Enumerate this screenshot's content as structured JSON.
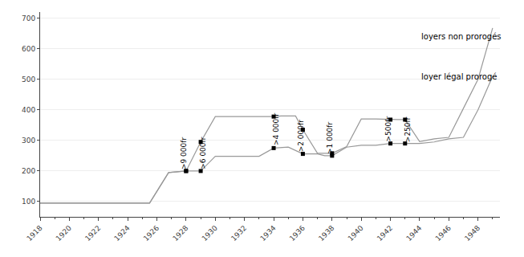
{
  "chart_data": {
    "type": "line",
    "xlim": [
      1918,
      1949.5
    ],
    "ylim": [
      50,
      720
    ],
    "xticks": [
      1918,
      1920,
      1922,
      1924,
      1926,
      1928,
      1930,
      1932,
      1934,
      1936,
      1938,
      1940,
      1942,
      1944,
      1946,
      1948
    ],
    "yticks": [
      100,
      200,
      300,
      400,
      500,
      600,
      700
    ],
    "grid": "y",
    "series": [
      {
        "type": "line",
        "color": "#999999",
        "x": [
          1918,
          1919,
          1920,
          1921,
          1922,
          1923,
          1924,
          1925,
          1925.5,
          1926.8,
          1928,
          1929,
          1930,
          1931,
          1932,
          1933,
          1934,
          1934.5,
          1935.5,
          1936,
          1937,
          1937.5,
          1938,
          1939,
          1940,
          1941,
          1942,
          1942.5,
          1943,
          1944,
          1945,
          1946,
          1947,
          1948,
          1949
        ],
        "values": [
          95,
          95,
          95,
          95,
          95,
          95,
          95,
          95,
          95,
          195,
          200,
          295,
          378,
          378,
          378,
          378,
          378,
          380,
          380,
          335,
          258,
          258,
          258,
          280,
          370,
          370,
          368,
          368,
          368,
          296,
          305,
          310,
          405,
          500,
          668
        ]
      },
      {
        "type": "line",
        "color": "#999999",
        "x": [
          1918,
          1919,
          1920,
          1921,
          1922,
          1923,
          1924,
          1925,
          1925.5,
          1926.8,
          1928,
          1929,
          1930,
          1931,
          1932,
          1933,
          1934,
          1935,
          1936,
          1937,
          1937.5,
          1938,
          1939,
          1940,
          1941,
          1942,
          1943,
          1944,
          1945,
          1946,
          1947,
          1948,
          1949
        ],
        "values": [
          95,
          95,
          95,
          95,
          95,
          95,
          95,
          95,
          95,
          195,
          200,
          200,
          248,
          248,
          248,
          248,
          275,
          278,
          256,
          256,
          250,
          250,
          278,
          284,
          284,
          290,
          290,
          290,
          295,
          305,
          310,
          400,
          510
        ]
      },
      {
        "type": "scatter",
        "marker": "square",
        "color": "#000000",
        "x": [
          1928,
          1929,
          1934,
          1936,
          1938,
          1942,
          1943
        ],
        "values": [
          200,
          295,
          378,
          335,
          258,
          368,
          368
        ]
      },
      {
        "type": "scatter",
        "marker": "square",
        "color": "#000000",
        "x": [
          1928,
          1929,
          1934,
          1936,
          1938,
          1942,
          1943
        ],
        "values": [
          200,
          200,
          275,
          256,
          250,
          290,
          290
        ]
      }
    ],
    "annotations": [
      {
        "text": ">9 000fr",
        "x": 1927.85,
        "y": 200,
        "rotated": true
      },
      {
        "text": ">6 000fr",
        "x": 1929.15,
        "y": 200,
        "rotated": true
      },
      {
        "text": ">4 000fr",
        "x": 1934.15,
        "y": 278,
        "rotated": true
      },
      {
        "text": ">2 000fr",
        "x": 1935.85,
        "y": 256,
        "rotated": true
      },
      {
        "text": ">1 000fr",
        "x": 1937.85,
        "y": 250,
        "rotated": true
      },
      {
        "text": ">500fr",
        "x": 1941.85,
        "y": 290,
        "rotated": true
      },
      {
        "text": ">250fr",
        "x": 1943.15,
        "y": 290,
        "rotated": true
      },
      {
        "text": "loyers non prorogés",
        "x": 1944,
        "y": 620,
        "point_x": 1948,
        "point_y": 650
      },
      {
        "text": "loyer légal prorogé",
        "x": 1944,
        "y": 490,
        "point_x": 1948,
        "point_y": 500
      }
    ]
  }
}
